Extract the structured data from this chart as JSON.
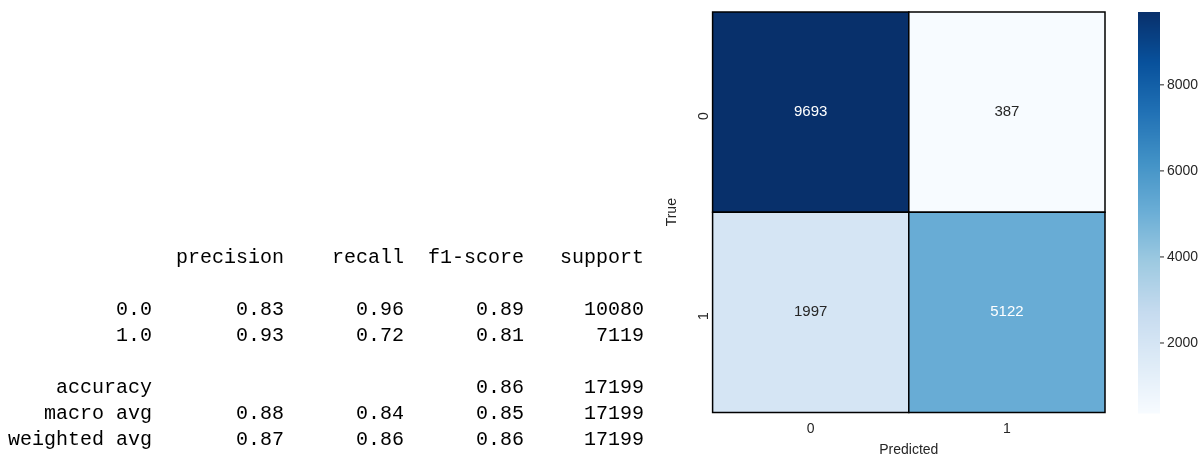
{
  "chart_data": [
    {
      "type": "other",
      "annotations": [
        "              precision    recall  f1-score   support",
        "         0.0       0.83      0.96      0.89     10080",
        "         1.0       0.93      0.72      0.81      7119",
        "    accuracy                           0.86     17199",
        "   macro avg       0.88      0.84      0.85     17199",
        "weighted avg       0.87      0.86      0.86     17199"
      ]
    },
    {
      "type": "heatmap",
      "categories": [
        "0",
        "1"
      ],
      "y_categories": [
        "0",
        "1"
      ],
      "cells": [
        [
          9693,
          387
        ],
        [
          1997,
          5122
        ]
      ],
      "clim": [
        387,
        9693
      ],
      "cticks": [
        2000,
        4000,
        6000,
        8000
      ],
      "xlabel": "Predicted",
      "ylabel": "True",
      "data_labels": true
    }
  ]
}
